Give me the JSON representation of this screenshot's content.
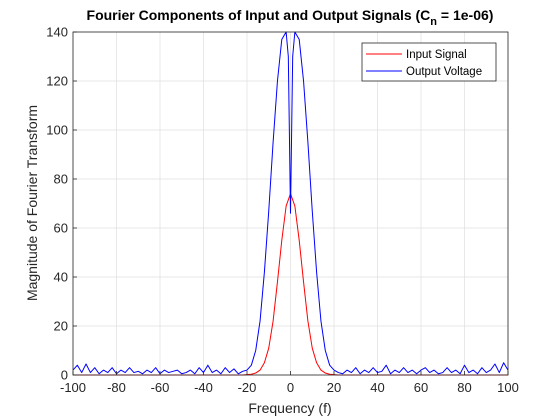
{
  "chart_data": {
    "type": "line",
    "title_main": "Fourier Components of Input and Output Signals (C",
    "title_sub": "n",
    "title_tail": " = 1e-06)",
    "xlabel": "Frequency (f)",
    "ylabel": "Magnitude of Fourier Transform",
    "xlim": [
      -100,
      100
    ],
    "ylim": [
      0,
      140
    ],
    "xticks": [
      -100,
      -80,
      -60,
      -40,
      -20,
      0,
      20,
      40,
      60,
      80,
      100
    ],
    "yticks": [
      0,
      20,
      40,
      60,
      80,
      100,
      120,
      140
    ],
    "grid": true,
    "legend_position": "top-right",
    "series": [
      {
        "name": "Input Signal",
        "color": "#ff0000",
        "x": [
          -100,
          -30,
          -22,
          -18,
          -16,
          -14,
          -12,
          -10,
          -8,
          -6,
          -4,
          -2,
          0,
          2,
          4,
          6,
          8,
          10,
          12,
          14,
          16,
          18,
          22,
          30,
          100
        ],
        "y": [
          0,
          0,
          0,
          0.3,
          0.8,
          2,
          5,
          11,
          22,
          38,
          55,
          69,
          74,
          69,
          55,
          38,
          22,
          11,
          5,
          2,
          0.8,
          0.3,
          0,
          0,
          0
        ]
      },
      {
        "name": "Output Voltage",
        "color": "#0000ff",
        "x": [
          -100,
          -98,
          -96,
          -94,
          -92,
          -90,
          -88,
          -86,
          -84,
          -82,
          -80,
          -78,
          -76,
          -74,
          -72,
          -70,
          -68,
          -66,
          -64,
          -62,
          -60,
          -58,
          -56,
          -54,
          -52,
          -50,
          -48,
          -46,
          -44,
          -42,
          -40,
          -38,
          -36,
          -34,
          -32,
          -30,
          -28,
          -26,
          -24,
          -22,
          -20,
          -18,
          -16,
          -14,
          -12,
          -10,
          -8,
          -6,
          -4,
          -2,
          -1,
          0,
          1,
          2,
          4,
          6,
          8,
          10,
          12,
          14,
          16,
          18,
          20,
          22,
          24,
          26,
          28,
          30,
          32,
          34,
          36,
          38,
          40,
          42,
          44,
          46,
          48,
          50,
          52,
          54,
          56,
          58,
          60,
          62,
          64,
          66,
          68,
          70,
          72,
          74,
          76,
          78,
          80,
          82,
          84,
          86,
          88,
          90,
          92,
          94,
          96,
          98,
          100
        ],
        "y": [
          2,
          4,
          1,
          4.5,
          1,
          3,
          0.5,
          2,
          1,
          3,
          0.5,
          2,
          1,
          3,
          1,
          1.5,
          0.5,
          2,
          1,
          3,
          0.5,
          2,
          1,
          1.5,
          2,
          0.5,
          1,
          2,
          0.5,
          3,
          1,
          4,
          1,
          2,
          0.5,
          3,
          1,
          2.5,
          0.5,
          1.5,
          2,
          4,
          10,
          22,
          42,
          67,
          95,
          120,
          137,
          140,
          130,
          66,
          130,
          140,
          137,
          120,
          95,
          67,
          42,
          22,
          10,
          4,
          2,
          1,
          0.5,
          2,
          1,
          3,
          0.5,
          2,
          1,
          3,
          1,
          1.5,
          4,
          0.5,
          2,
          1,
          3,
          1,
          2,
          0.5,
          2,
          3,
          1,
          2,
          0.5,
          1,
          3,
          1,
          2,
          0.5,
          4,
          1,
          2,
          0.5,
          3,
          1,
          2,
          4.5,
          1,
          5,
          2
        ]
      }
    ]
  }
}
